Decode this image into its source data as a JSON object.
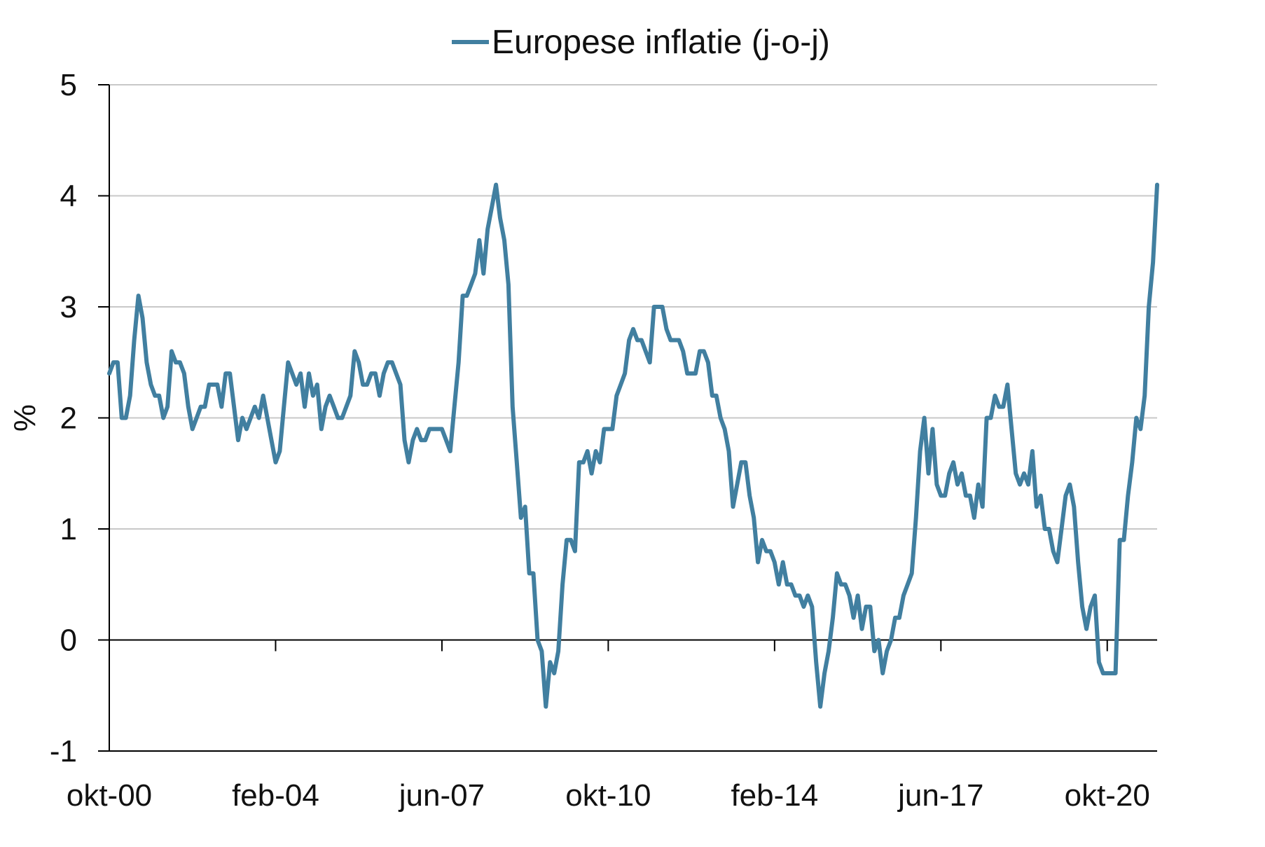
{
  "chart_data": {
    "type": "line",
    "title": "",
    "xlabel": "",
    "ylabel": "%",
    "ylim": [
      -1,
      5
    ],
    "yticks": [
      -1,
      0,
      1,
      2,
      3,
      4,
      5
    ],
    "ytick_labels": [
      "-1",
      "0",
      "1",
      "2",
      "3",
      "4",
      "5"
    ],
    "xtick_labels": [
      "okt-00",
      "feb-04",
      "jun-07",
      "okt-10",
      "feb-14",
      "jun-17",
      "okt-20"
    ],
    "grid": "horizontal",
    "legend": "top-center",
    "colors": {
      "series": "#417fa0",
      "grid": "#c8c8c8",
      "axis": "#000000"
    },
    "series": [
      {
        "name": "Europese inflatie (j-o-j)",
        "start": "2000-10",
        "frequency": "monthly",
        "values": [
          2.4,
          2.5,
          2.5,
          2.0,
          2.0,
          2.2,
          2.7,
          3.1,
          2.9,
          2.5,
          2.3,
          2.2,
          2.2,
          2.0,
          2.1,
          2.6,
          2.5,
          2.5,
          2.4,
          2.1,
          1.9,
          2.0,
          2.1,
          2.1,
          2.3,
          2.3,
          2.3,
          2.1,
          2.4,
          2.4,
          2.1,
          1.8,
          2.0,
          1.9,
          2.0,
          2.1,
          2.0,
          2.2,
          2.0,
          1.8,
          1.6,
          1.7,
          2.1,
          2.5,
          2.4,
          2.3,
          2.4,
          2.1,
          2.4,
          2.2,
          2.3,
          1.9,
          2.1,
          2.2,
          2.1,
          2.0,
          2.0,
          2.1,
          2.2,
          2.6,
          2.5,
          2.3,
          2.3,
          2.4,
          2.4,
          2.2,
          2.4,
          2.5,
          2.5,
          2.4,
          2.3,
          1.8,
          1.6,
          1.8,
          1.9,
          1.8,
          1.8,
          1.9,
          1.9,
          1.9,
          1.9,
          1.8,
          1.7,
          2.1,
          2.5,
          3.1,
          3.1,
          3.2,
          3.3,
          3.6,
          3.3,
          3.7,
          3.9,
          4.1,
          3.8,
          3.6,
          3.2,
          2.1,
          1.6,
          1.1,
          1.2,
          0.6,
          0.6,
          0.0,
          -0.1,
          -0.6,
          -0.2,
          -0.3,
          -0.1,
          0.5,
          0.9,
          0.9,
          0.8,
          1.6,
          1.6,
          1.7,
          1.5,
          1.7,
          1.6,
          1.9,
          1.9,
          1.9,
          2.2,
          2.3,
          2.4,
          2.7,
          2.8,
          2.7,
          2.7,
          2.6,
          2.5,
          3.0,
          3.0,
          3.0,
          2.8,
          2.7,
          2.7,
          2.7,
          2.6,
          2.4,
          2.4,
          2.4,
          2.6,
          2.6,
          2.5,
          2.2,
          2.2,
          2.0,
          1.9,
          1.7,
          1.2,
          1.4,
          1.6,
          1.6,
          1.3,
          1.1,
          0.7,
          0.9,
          0.8,
          0.8,
          0.7,
          0.5,
          0.7,
          0.5,
          0.5,
          0.4,
          0.4,
          0.3,
          0.4,
          0.3,
          -0.2,
          -0.6,
          -0.3,
          -0.1,
          0.2,
          0.6,
          0.5,
          0.5,
          0.4,
          0.2,
          0.4,
          0.1,
          0.3,
          0.3,
          -0.1,
          0.0,
          -0.3,
          -0.1,
          0.0,
          0.2,
          0.2,
          0.4,
          0.5,
          0.6,
          1.1,
          1.7,
          2.0,
          1.5,
          1.9,
          1.4,
          1.3,
          1.3,
          1.5,
          1.6,
          1.4,
          1.5,
          1.3,
          1.3,
          1.1,
          1.4,
          1.2,
          2.0,
          2.0,
          2.2,
          2.1,
          2.1,
          2.3,
          1.9,
          1.5,
          1.4,
          1.5,
          1.4,
          1.7,
          1.2,
          1.3,
          1.0,
          1.0,
          0.8,
          0.7,
          1.0,
          1.3,
          1.4,
          1.2,
          0.7,
          0.3,
          0.1,
          0.3,
          0.4,
          -0.2,
          -0.3,
          -0.3,
          -0.3,
          -0.3,
          0.9,
          0.9,
          1.3,
          1.6,
          2.0,
          1.9,
          2.2,
          3.0,
          3.4,
          4.1
        ]
      }
    ]
  }
}
